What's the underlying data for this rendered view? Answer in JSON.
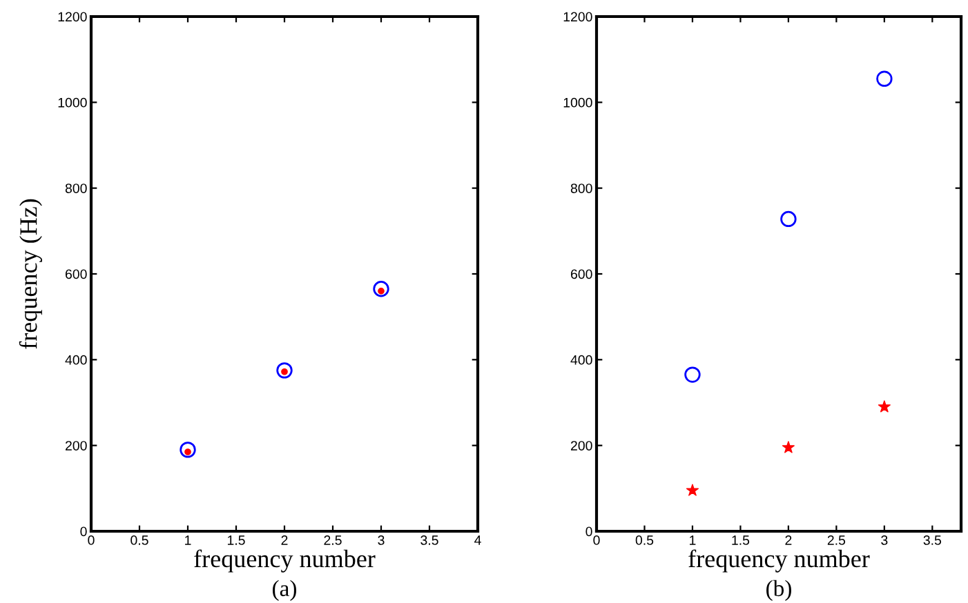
{
  "chart_data": [
    {
      "type": "scatter",
      "ylabel": "frequency (Hz)",
      "xlabel": "frequency number",
      "annotations": [
        "(a)"
      ],
      "xlim": [
        0,
        4
      ],
      "xticks": [
        0,
        0.5,
        1,
        1.5,
        2,
        2.5,
        3,
        3.5,
        4
      ],
      "ylim": [
        0,
        1200
      ],
      "yticks": [
        0,
        200,
        400,
        600,
        800,
        1000,
        1200
      ],
      "grid": false,
      "legend": false,
      "series": [
        {
          "color": "#0000ff",
          "marker": "circle",
          "x": [
            1,
            2,
            3
          ],
          "values": [
            190,
            375,
            565
          ]
        },
        {
          "color": "#ff0000",
          "marker": "circle",
          "x": [
            1,
            2,
            3
          ],
          "values": [
            185,
            372,
            560
          ]
        }
      ]
    },
    {
      "type": "scatter",
      "xlabel": "frequency number",
      "annotations": [
        "(b)"
      ],
      "xlim": [
        0,
        3.8
      ],
      "xticks": [
        0,
        0.5,
        1,
        1.5,
        2,
        2.5,
        3,
        3.5
      ],
      "ylim": [
        0,
        1200
      ],
      "yticks": [
        0,
        200,
        400,
        600,
        800,
        1000,
        1200
      ],
      "grid": false,
      "legend": false,
      "series": [
        {
          "color": "#0000ff",
          "marker": "circle",
          "x": [
            1,
            2,
            3
          ],
          "values": [
            365,
            728,
            1055
          ]
        },
        {
          "color": "#ff0000",
          "marker": "star",
          "x": [
            1,
            2,
            3
          ],
          "values": [
            95,
            195,
            290
          ]
        }
      ]
    }
  ]
}
